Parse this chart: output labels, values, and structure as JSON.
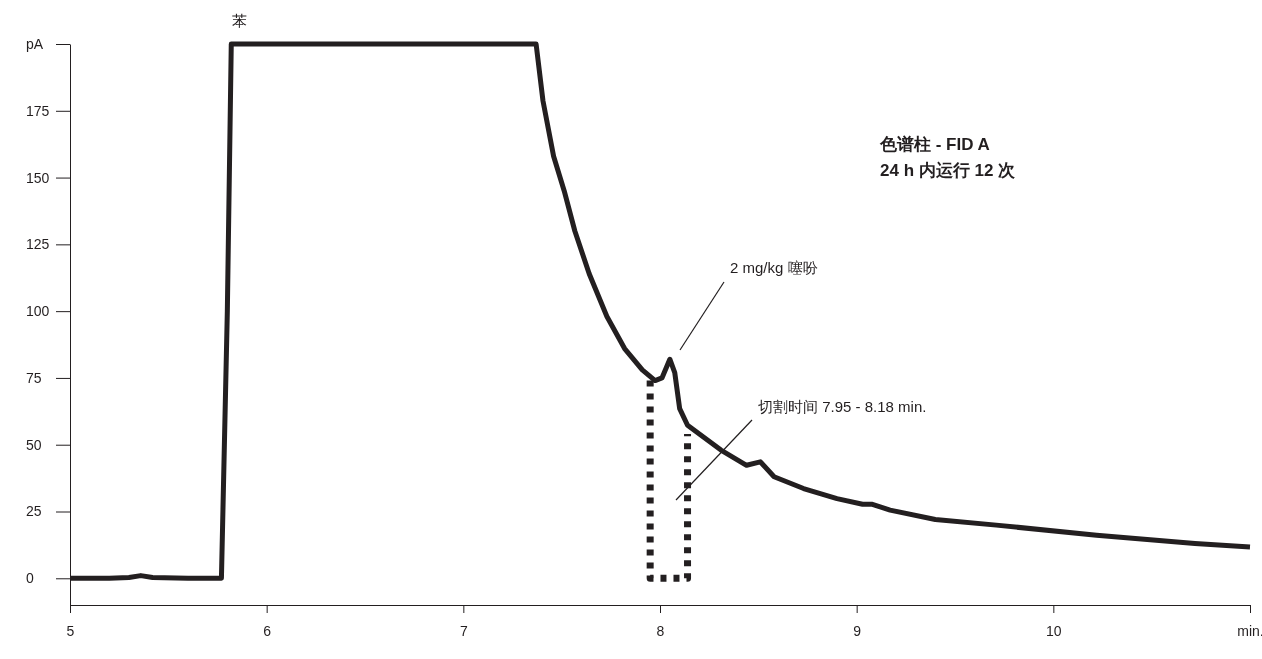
{
  "chart_data": {
    "type": "line",
    "title": "色谱柱 - FID A",
    "subtitle": "24 h 内运行 12 次",
    "xlim": [
      5,
      11
    ],
    "xticks": [
      5,
      6,
      7,
      8,
      9,
      10,
      {
        "value": 11,
        "label": "min."
      }
    ],
    "ylim": [
      -10,
      200
    ],
    "yticks": [
      0,
      25,
      50,
      75,
      100,
      125,
      150,
      175,
      {
        "value": 200,
        "label": "pA"
      }
    ],
    "grid": false,
    "marker": "none",
    "series": [
      {
        "color": "#231f20",
        "line_style": "solid",
        "x": [
          5,
          5.2,
          5.3,
          5.36,
          5.42,
          5.6,
          5.77,
          5.8,
          5.82,
          6.5,
          7.37,
          7.405,
          7.459,
          7.513,
          7.567,
          7.64,
          7.73,
          7.82,
          7.91,
          7.975,
          8.01,
          8.05,
          8.075,
          8.1,
          8.14,
          8.31,
          8.44,
          8.51,
          8.58,
          8.73,
          8.9,
          9.03,
          9.08,
          9.17,
          9.4,
          9.71,
          10.22,
          10.72,
          11
        ],
        "values": [
          0,
          0,
          0.3,
          1,
          0.3,
          0,
          0,
          100,
          200,
          200,
          200,
          178.7,
          158,
          145,
          130,
          114,
          98,
          86,
          78,
          74,
          75,
          82,
          77,
          63.5,
          57.3,
          48,
          42.3,
          43.6,
          38,
          33.6,
          29.8,
          27.7,
          27.7,
          25.5,
          22,
          19.9,
          16.1,
          13,
          11.7
        ]
      },
      {
        "color": "#231f20",
        "line_style": "dotted",
        "x": [
          7.95,
          7.95,
          8.14,
          8.14
        ],
        "values": [
          74,
          0,
          0,
          54
        ]
      }
    ],
    "annotations": [
      {
        "text": "苯",
        "x": 5.86,
        "y": 200
      },
      "2 mg/kg 噻吩",
      "切割时间 7.95 - 8.18 min."
    ]
  }
}
